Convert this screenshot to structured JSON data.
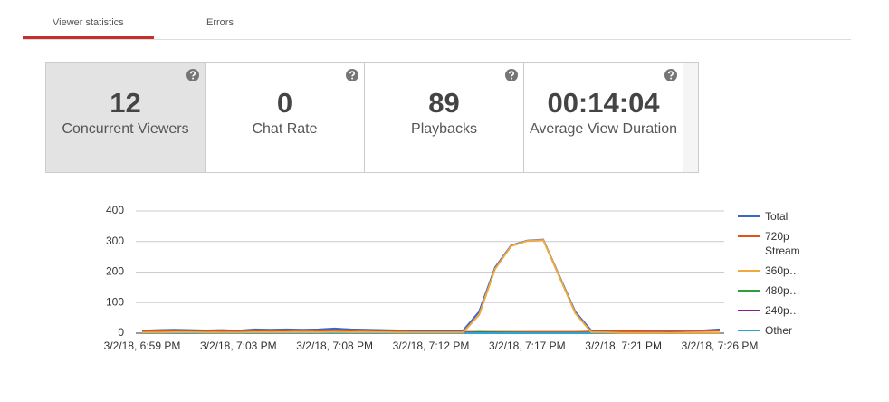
{
  "tabs": [
    "Viewer statistics",
    "Errors"
  ],
  "stats": [
    {
      "value": "12",
      "label": "Concurrent Viewers"
    },
    {
      "value": "0",
      "label": "Chat Rate"
    },
    {
      "value": "89",
      "label": "Playbacks"
    },
    {
      "value": "00:14:04",
      "label": "Average View Duration"
    }
  ],
  "chart_data": {
    "type": "line",
    "categories": [
      "3/2/18, 6:59 PM",
      null,
      null,
      null,
      null,
      null,
      "3/2/18, 7:03 PM",
      null,
      null,
      null,
      null,
      null,
      "3/2/18, 7:08 PM",
      null,
      null,
      null,
      null,
      null,
      "3/2/18, 7:12 PM",
      null,
      null,
      null,
      null,
      null,
      "3/2/18, 7:17 PM",
      null,
      null,
      null,
      null,
      null,
      "3/2/18, 7:21 PM",
      null,
      null,
      null,
      null,
      null,
      "3/2/18, 7:26 PM"
    ],
    "series": [
      {
        "name": "Total",
        "color": "#3b66c4",
        "values": [
          8,
          10,
          11,
          10,
          9,
          10,
          8,
          12,
          11,
          12,
          11,
          12,
          15,
          12,
          11,
          10,
          9,
          8,
          8,
          9,
          8,
          70,
          215,
          287,
          303,
          306,
          188,
          70,
          8,
          8,
          7,
          6,
          7,
          6,
          8,
          9,
          12
        ]
      },
      {
        "name": "720p Stream",
        "color": "#e0541c",
        "values": [
          5,
          6,
          6,
          5,
          5,
          6,
          5,
          6,
          6,
          6,
          5,
          6,
          7,
          6,
          5,
          5,
          5,
          4,
          4,
          4,
          4,
          4,
          4,
          4,
          4,
          4,
          4,
          4,
          5,
          5,
          6,
          7,
          8,
          8,
          8,
          8,
          9
        ]
      },
      {
        "name": "360p…",
        "color": "#f2a93b",
        "values": [
          2,
          2,
          3,
          3,
          2,
          2,
          2,
          3,
          3,
          3,
          3,
          3,
          4,
          3,
          3,
          3,
          2,
          2,
          2,
          2,
          2,
          60,
          210,
          285,
          302,
          305,
          185,
          65,
          3,
          2,
          1,
          1,
          1,
          1,
          1,
          1,
          1
        ]
      },
      {
        "name": "480p…",
        "color": "#2e9e3b",
        "values": [
          1,
          1,
          1,
          1,
          1,
          1,
          1,
          2,
          1,
          1,
          1,
          1,
          2,
          1,
          1,
          1,
          1,
          1,
          1,
          1,
          1,
          4,
          2,
          2,
          1,
          1,
          1,
          1,
          1,
          1,
          0,
          0,
          0,
          0,
          0,
          0,
          1
        ]
      },
      {
        "name": "240p…",
        "color": "#8b1a8b",
        "values": [
          1,
          1,
          1,
          1,
          1,
          2,
          2,
          2,
          2,
          2,
          2,
          2,
          2,
          2,
          2,
          2,
          1,
          1,
          1,
          1,
          1,
          1,
          1,
          0,
          0,
          0,
          0,
          0,
          0,
          1,
          1,
          1,
          1,
          1,
          1,
          1,
          1
        ]
      },
      {
        "name": "Other",
        "color": "#2aa6d4",
        "values": [
          0,
          0,
          0,
          0,
          0,
          0,
          0,
          0,
          0,
          0,
          0,
          0,
          0,
          0,
          0,
          0,
          0,
          0,
          0,
          0,
          0,
          0,
          0,
          0,
          0,
          0,
          0,
          0,
          0,
          0,
          0,
          0,
          0,
          0,
          0,
          0,
          0
        ]
      }
    ],
    "ylim": [
      0,
      400
    ],
    "yticks": [
      0,
      100,
      200,
      300,
      400
    ],
    "grid": true,
    "legend": "right"
  }
}
